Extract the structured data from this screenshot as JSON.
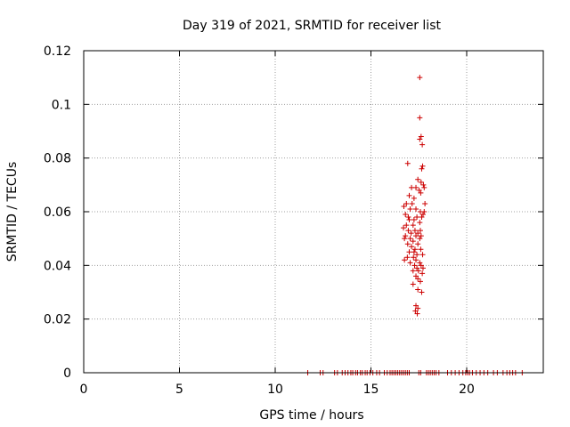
{
  "chart_data": {
    "type": "scatter",
    "title": "Day 319 of 2021, SRMTID for receiver list",
    "xlabel": "GPS time / hours",
    "ylabel": "SRMTID / TECUs",
    "xlim": [
      0,
      24
    ],
    "ylim": [
      0,
      0.12
    ],
    "x_ticks": [
      0,
      5,
      10,
      15,
      20
    ],
    "x_tick_labels": [
      "0",
      "5",
      "10",
      "15",
      "20"
    ],
    "y_ticks": [
      0,
      0.02,
      0.04,
      0.06,
      0.08,
      0.1,
      0.12
    ],
    "y_tick_labels": [
      "0",
      "0.02",
      "0.04",
      "0.06",
      "0.08",
      "0.1",
      "0.12"
    ],
    "grid": true,
    "marker": "+",
    "marker_color": "#cc0000",
    "series": [
      {
        "points": [
          [
            17.55,
            0.11
          ],
          [
            17.55,
            0.095
          ],
          [
            17.62,
            0.088
          ],
          [
            17.55,
            0.087
          ],
          [
            17.68,
            0.085
          ],
          [
            16.92,
            0.078
          ],
          [
            17.7,
            0.077
          ],
          [
            17.65,
            0.076
          ],
          [
            17.45,
            0.072
          ],
          [
            17.62,
            0.071
          ],
          [
            17.74,
            0.07
          ],
          [
            17.12,
            0.069
          ],
          [
            17.35,
            0.069
          ],
          [
            17.52,
            0.068
          ],
          [
            17.78,
            0.069
          ],
          [
            17.6,
            0.067
          ],
          [
            17.0,
            0.066
          ],
          [
            17.25,
            0.065
          ],
          [
            16.85,
            0.063
          ],
          [
            17.15,
            0.063
          ],
          [
            17.82,
            0.063
          ],
          [
            16.72,
            0.062
          ],
          [
            17.05,
            0.061
          ],
          [
            17.35,
            0.061
          ],
          [
            17.58,
            0.06
          ],
          [
            17.78,
            0.06
          ],
          [
            16.8,
            0.059
          ],
          [
            17.72,
            0.059
          ],
          [
            16.95,
            0.058
          ],
          [
            17.4,
            0.058
          ],
          [
            17.65,
            0.058
          ],
          [
            17.0,
            0.057
          ],
          [
            17.25,
            0.057
          ],
          [
            17.55,
            0.056
          ],
          [
            16.85,
            0.055
          ],
          [
            17.2,
            0.055
          ],
          [
            16.7,
            0.054
          ],
          [
            16.95,
            0.053
          ],
          [
            17.3,
            0.053
          ],
          [
            17.58,
            0.053
          ],
          [
            17.1,
            0.052
          ],
          [
            17.45,
            0.052
          ],
          [
            16.8,
            0.051
          ],
          [
            17.35,
            0.051
          ],
          [
            17.62,
            0.051
          ],
          [
            16.75,
            0.05
          ],
          [
            17.05,
            0.05
          ],
          [
            17.55,
            0.05
          ],
          [
            17.2,
            0.049
          ],
          [
            16.92,
            0.048
          ],
          [
            17.45,
            0.048
          ],
          [
            17.12,
            0.047
          ],
          [
            17.3,
            0.046
          ],
          [
            17.6,
            0.046
          ],
          [
            17.0,
            0.045
          ],
          [
            17.25,
            0.045
          ],
          [
            17.4,
            0.044
          ],
          [
            17.7,
            0.044
          ],
          [
            16.9,
            0.043
          ],
          [
            17.22,
            0.043
          ],
          [
            16.75,
            0.042
          ],
          [
            17.35,
            0.042
          ],
          [
            17.05,
            0.041
          ],
          [
            17.55,
            0.041
          ],
          [
            17.28,
            0.04
          ],
          [
            17.62,
            0.04
          ],
          [
            17.4,
            0.039
          ],
          [
            17.72,
            0.039
          ],
          [
            17.2,
            0.038
          ],
          [
            17.48,
            0.038
          ],
          [
            17.68,
            0.037
          ],
          [
            17.35,
            0.036
          ],
          [
            17.45,
            0.035
          ],
          [
            17.58,
            0.034
          ],
          [
            17.2,
            0.033
          ],
          [
            17.45,
            0.031
          ],
          [
            17.65,
            0.03
          ],
          [
            17.35,
            0.025
          ],
          [
            17.45,
            0.024
          ],
          [
            17.32,
            0.023
          ],
          [
            17.42,
            0.022
          ],
          [
            11.7,
            0.0
          ],
          [
            12.35,
            0.0
          ],
          [
            12.5,
            0.0
          ],
          [
            13.1,
            0.0
          ],
          [
            13.25,
            0.0
          ],
          [
            13.5,
            0.0
          ],
          [
            13.65,
            0.0
          ],
          [
            13.8,
            0.0
          ],
          [
            13.95,
            0.0
          ],
          [
            14.05,
            0.0
          ],
          [
            14.2,
            0.0
          ],
          [
            14.3,
            0.0
          ],
          [
            14.45,
            0.0
          ],
          [
            14.55,
            0.0
          ],
          [
            14.7,
            0.0
          ],
          [
            14.8,
            0.0
          ],
          [
            14.95,
            0.0
          ],
          [
            15.1,
            0.0
          ],
          [
            15.3,
            0.0
          ],
          [
            15.45,
            0.0
          ],
          [
            15.7,
            0.0
          ],
          [
            15.85,
            0.0
          ],
          [
            16.0,
            0.0
          ],
          [
            16.1,
            0.0
          ],
          [
            16.2,
            0.0
          ],
          [
            16.3,
            0.0
          ],
          [
            16.4,
            0.0
          ],
          [
            16.5,
            0.0
          ],
          [
            16.6,
            0.0
          ],
          [
            16.7,
            0.0
          ],
          [
            16.8,
            0.0
          ],
          [
            16.9,
            0.0
          ],
          [
            17.0,
            0.0
          ],
          [
            17.5,
            0.0
          ],
          [
            17.6,
            0.0
          ],
          [
            17.9,
            0.0
          ],
          [
            18.0,
            0.0
          ],
          [
            18.1,
            0.0
          ],
          [
            18.2,
            0.0
          ],
          [
            18.3,
            0.0
          ],
          [
            18.4,
            0.0
          ],
          [
            18.55,
            0.0
          ],
          [
            19.0,
            0.0
          ],
          [
            19.2,
            0.0
          ],
          [
            19.4,
            0.0
          ],
          [
            19.6,
            0.0
          ],
          [
            19.8,
            0.0
          ],
          [
            19.95,
            0.0
          ],
          [
            20.05,
            0.0
          ],
          [
            20.15,
            0.0
          ],
          [
            20.3,
            0.0
          ],
          [
            20.5,
            0.0
          ],
          [
            20.7,
            0.0
          ],
          [
            20.9,
            0.0
          ],
          [
            21.1,
            0.0
          ],
          [
            21.4,
            0.0
          ],
          [
            21.6,
            0.0
          ],
          [
            21.9,
            0.0
          ],
          [
            22.1,
            0.0
          ],
          [
            22.25,
            0.0
          ],
          [
            22.4,
            0.0
          ],
          [
            22.55,
            0.0
          ],
          [
            22.9,
            0.0
          ]
        ]
      }
    ]
  }
}
